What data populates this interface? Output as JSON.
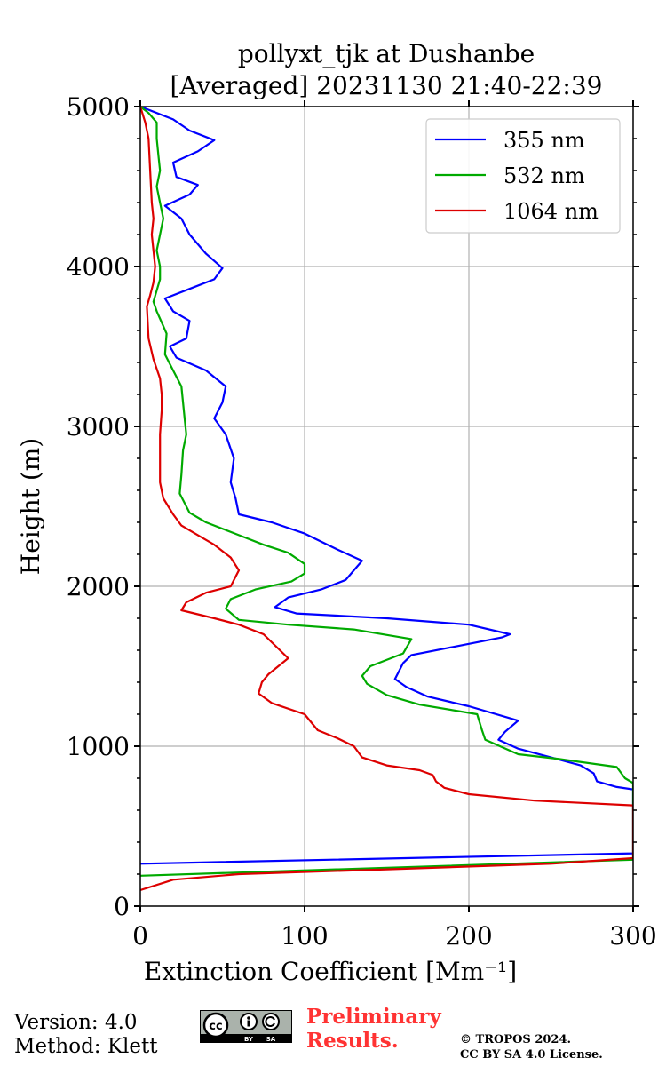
{
  "chart_data": {
    "type": "line",
    "title": "pollyxt_tjk at Dushanbe",
    "subtitle": "[Averaged] 20231130 21:40-22:39",
    "xlabel": "Extinction Coefficient [Mm⁻¹]",
    "ylabel": "Height (m)",
    "xlim": [
      0,
      300
    ],
    "ylim": [
      0,
      5000
    ],
    "xticks": [
      0,
      100,
      200,
      300
    ],
    "yticks": [
      0,
      1000,
      2000,
      3000,
      4000,
      5000
    ],
    "grid": true,
    "legend": "top-right",
    "series": [
      {
        "name": "355 nm",
        "color": "#0000ff",
        "points": [
          [
            0,
            265
          ],
          [
            300,
            330
          ],
          [
            300,
            730
          ],
          [
            290,
            745
          ],
          [
            278,
            780
          ],
          [
            276,
            830
          ],
          [
            268,
            880
          ],
          [
            250,
            930
          ],
          [
            230,
            985
          ],
          [
            218,
            1040
          ],
          [
            222,
            1090
          ],
          [
            230,
            1160
          ],
          [
            200,
            1250
          ],
          [
            175,
            1310
          ],
          [
            162,
            1370
          ],
          [
            155,
            1420
          ],
          [
            160,
            1520
          ],
          [
            165,
            1570
          ],
          [
            190,
            1620
          ],
          [
            220,
            1680
          ],
          [
            225,
            1700
          ],
          [
            200,
            1760
          ],
          [
            150,
            1800
          ],
          [
            95,
            1830
          ],
          [
            82,
            1870
          ],
          [
            90,
            1930
          ],
          [
            110,
            1980
          ],
          [
            125,
            2040
          ],
          [
            130,
            2100
          ],
          [
            135,
            2160
          ],
          [
            120,
            2230
          ],
          [
            100,
            2330
          ],
          [
            80,
            2400
          ],
          [
            60,
            2450
          ],
          [
            58,
            2550
          ],
          [
            55,
            2650
          ],
          [
            57,
            2800
          ],
          [
            52,
            2950
          ],
          [
            45,
            3050
          ],
          [
            50,
            3150
          ],
          [
            52,
            3250
          ],
          [
            40,
            3350
          ],
          [
            22,
            3430
          ],
          [
            18,
            3500
          ],
          [
            28,
            3550
          ],
          [
            30,
            3660
          ],
          [
            20,
            3720
          ],
          [
            15,
            3800
          ],
          [
            30,
            3860
          ],
          [
            45,
            3920
          ],
          [
            50,
            3990
          ],
          [
            40,
            4080
          ],
          [
            30,
            4200
          ],
          [
            25,
            4300
          ],
          [
            15,
            4380
          ],
          [
            30,
            4450
          ],
          [
            35,
            4510
          ],
          [
            22,
            4560
          ],
          [
            20,
            4650
          ],
          [
            35,
            4720
          ],
          [
            45,
            4790
          ],
          [
            30,
            4850
          ],
          [
            20,
            4920
          ],
          [
            10,
            4960
          ],
          [
            0,
            5000
          ]
        ]
      },
      {
        "name": "532 nm",
        "color": "#00aa00",
        "points": [
          [
            0,
            190
          ],
          [
            300,
            290
          ],
          [
            300,
            770
          ],
          [
            295,
            800
          ],
          [
            290,
            870
          ],
          [
            255,
            920
          ],
          [
            230,
            950
          ],
          [
            210,
            1040
          ],
          [
            208,
            1100
          ],
          [
            205,
            1200
          ],
          [
            170,
            1260
          ],
          [
            150,
            1320
          ],
          [
            138,
            1390
          ],
          [
            135,
            1440
          ],
          [
            140,
            1500
          ],
          [
            160,
            1580
          ],
          [
            165,
            1670
          ],
          [
            130,
            1730
          ],
          [
            90,
            1760
          ],
          [
            60,
            1790
          ],
          [
            52,
            1860
          ],
          [
            55,
            1920
          ],
          [
            70,
            1980
          ],
          [
            92,
            2030
          ],
          [
            100,
            2080
          ],
          [
            100,
            2140
          ],
          [
            90,
            2210
          ],
          [
            75,
            2260
          ],
          [
            60,
            2320
          ],
          [
            40,
            2400
          ],
          [
            30,
            2460
          ],
          [
            24,
            2580
          ],
          [
            25,
            2700
          ],
          [
            26,
            2850
          ],
          [
            28,
            2950
          ],
          [
            27,
            3050
          ],
          [
            26,
            3150
          ],
          [
            25,
            3250
          ],
          [
            20,
            3350
          ],
          [
            15,
            3450
          ],
          [
            16,
            3580
          ],
          [
            13,
            3650
          ],
          [
            10,
            3720
          ],
          [
            8,
            3780
          ],
          [
            10,
            3850
          ],
          [
            12,
            3920
          ],
          [
            12,
            4000
          ],
          [
            10,
            4100
          ],
          [
            12,
            4200
          ],
          [
            14,
            4300
          ],
          [
            12,
            4400
          ],
          [
            10,
            4500
          ],
          [
            12,
            4600
          ],
          [
            11,
            4700
          ],
          [
            10,
            4800
          ],
          [
            10,
            4900
          ],
          [
            5,
            4960
          ],
          [
            0,
            5000
          ]
        ]
      },
      {
        "name": "1064 nm",
        "color": "#dd0000",
        "points": [
          [
            0,
            100
          ],
          [
            20,
            165
          ],
          [
            60,
            200
          ],
          [
            150,
            230
          ],
          [
            250,
            265
          ],
          [
            300,
            300
          ],
          [
            300,
            630
          ],
          [
            240,
            660
          ],
          [
            200,
            700
          ],
          [
            185,
            740
          ],
          [
            180,
            780
          ],
          [
            178,
            820
          ],
          [
            170,
            850
          ],
          [
            150,
            880
          ],
          [
            135,
            930
          ],
          [
            130,
            1000
          ],
          [
            120,
            1050
          ],
          [
            108,
            1100
          ],
          [
            100,
            1200
          ],
          [
            80,
            1270
          ],
          [
            72,
            1330
          ],
          [
            74,
            1400
          ],
          [
            78,
            1450
          ],
          [
            90,
            1550
          ],
          [
            80,
            1650
          ],
          [
            75,
            1700
          ],
          [
            60,
            1760
          ],
          [
            45,
            1800
          ],
          [
            25,
            1850
          ],
          [
            28,
            1900
          ],
          [
            40,
            1960
          ],
          [
            55,
            2000
          ],
          [
            60,
            2100
          ],
          [
            55,
            2180
          ],
          [
            45,
            2260
          ],
          [
            35,
            2320
          ],
          [
            25,
            2380
          ],
          [
            20,
            2450
          ],
          [
            14,
            2550
          ],
          [
            12,
            2650
          ],
          [
            12,
            2800
          ],
          [
            12,
            2950
          ],
          [
            13,
            3100
          ],
          [
            13,
            3200
          ],
          [
            12,
            3300
          ],
          [
            8,
            3420
          ],
          [
            5,
            3550
          ],
          [
            4,
            3750
          ],
          [
            6,
            3820
          ],
          [
            8,
            3900
          ],
          [
            9,
            4000
          ],
          [
            8,
            4100
          ],
          [
            7,
            4200
          ],
          [
            8,
            4300
          ],
          [
            7,
            4400
          ],
          [
            6,
            4600
          ],
          [
            5,
            4800
          ],
          [
            3,
            4900
          ],
          [
            0,
            5000
          ]
        ]
      }
    ]
  },
  "footer": {
    "version": "Version: 4.0",
    "method": "Method: Klett",
    "prelim_line1": "Preliminary",
    "prelim_line2": "Results.",
    "copyright_line1": "© TROPOS 2024.",
    "copyright_line2": "CC BY SA 4.0 License.",
    "cc_badge": {
      "cc": "cc",
      "by": "BY",
      "sa": "SA"
    }
  }
}
